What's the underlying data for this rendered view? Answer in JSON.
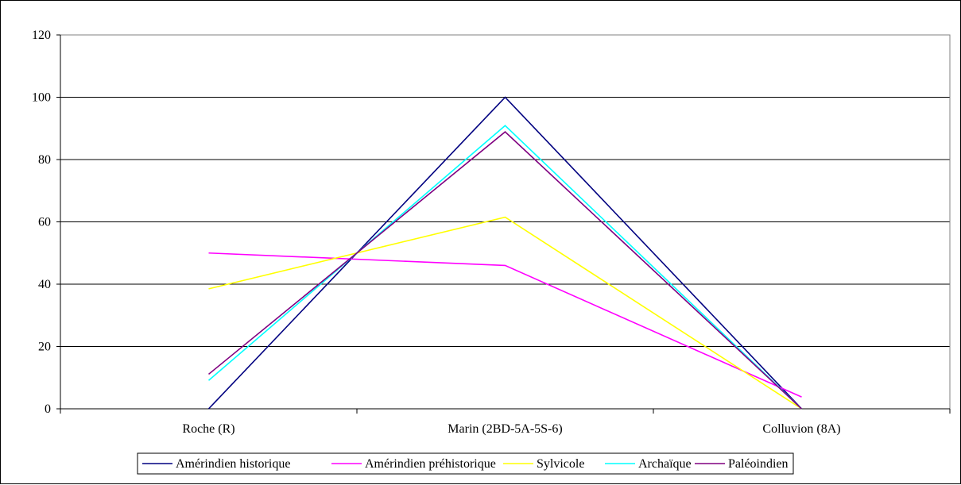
{
  "chart_data": {
    "type": "line",
    "categories": [
      "Roche (R)",
      "Marin (2BD-5A-5S-6)",
      "Colluvion (8A)"
    ],
    "ylim": [
      0,
      120
    ],
    "yticks": [
      0,
      20,
      40,
      60,
      80,
      100,
      120
    ],
    "grid": true,
    "legend_position": "bottom",
    "series": [
      {
        "name": "Amérindien historique",
        "color": "#000080",
        "values": [
          0,
          100,
          0
        ]
      },
      {
        "name": "Amérindien préhistorique",
        "color": "#FF00FF",
        "values": [
          50,
          46,
          3.8
        ]
      },
      {
        "name": "Sylvicole",
        "color": "#FFFF00",
        "values": [
          38.5,
          61.5,
          0
        ]
      },
      {
        "name": "Archaïque",
        "color": "#00FFFF",
        "values": [
          9.1,
          90.9,
          0
        ]
      },
      {
        "name": "Paléoindien",
        "color": "#800080",
        "values": [
          11.1,
          88.9,
          0
        ]
      }
    ]
  }
}
